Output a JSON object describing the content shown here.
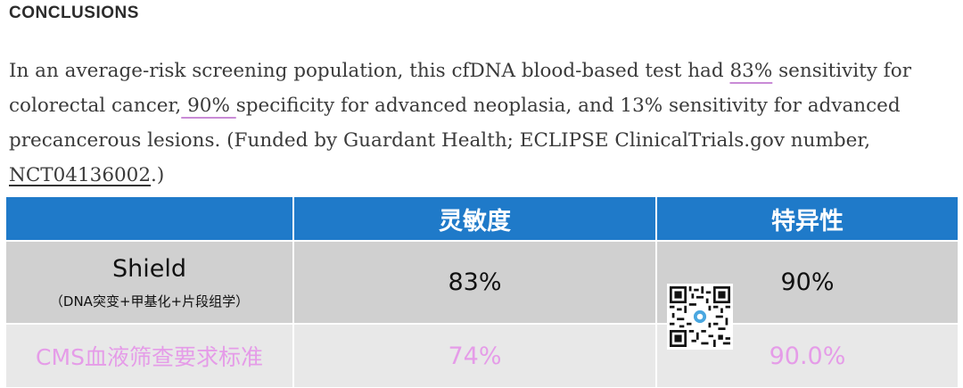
{
  "heading": "CONCLUSIONS",
  "paragraph": {
    "p1": "In an average-risk screening population, this cfDNA blood-based test had ",
    "h1": "83%",
    "p2": " sensitivity for colorectal cancer,",
    "h2": " 90% ",
    "p3": "specificity for advanced neoplasia, and 13% sensitivity for advanced precancerous lesions. (Funded by Guardant Health; ECLIPSE ClinicalTrials.gov number, ",
    "link": "NCT04136002",
    "p4": ".)"
  },
  "table": {
    "headers": [
      "",
      "灵敏度",
      "特异性"
    ],
    "row1": {
      "name": "Shield",
      "sub": "（DNA突变+甲基化+片段组学）",
      "sensitivity": "83%",
      "specificity": "90%"
    },
    "row2": {
      "name": "CMS血液筛查要求标准",
      "sensitivity": "74%",
      "specificity": "90.0%"
    }
  },
  "colors": {
    "header_bg": "#1f7ac9",
    "row1_bg": "#d0d0d0",
    "row2_bg": "#e8e8e8",
    "pink": "#e59ce8",
    "underline": "#c98bd6"
  },
  "icons": {
    "qr": "qr-code-icon"
  }
}
